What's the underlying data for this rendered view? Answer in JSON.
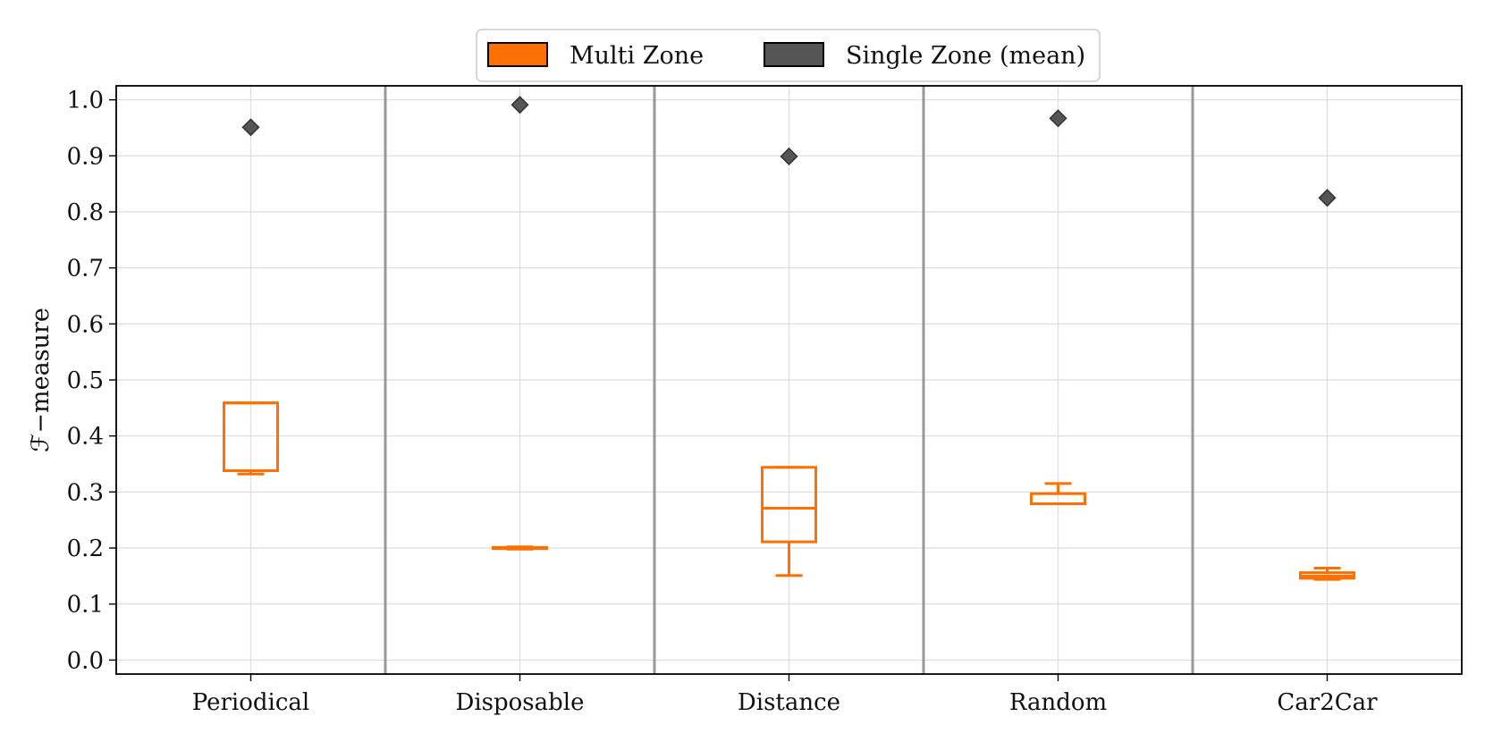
{
  "chart_data": {
    "type": "box",
    "title": "",
    "xlabel": "",
    "ylabel": "ℱ−measure",
    "ylim": [
      -0.025,
      1.025
    ],
    "yticks": [
      "0.0",
      "0.1",
      "0.2",
      "0.3",
      "0.4",
      "0.5",
      "0.6",
      "0.7",
      "0.8",
      "0.9",
      "1.0"
    ],
    "grid": true,
    "legend_position": "top-center",
    "categories": [
      "Periodical",
      "Disposable",
      "Distance",
      "Random",
      "Car2Car"
    ],
    "series": [
      {
        "name": "Multi Zone",
        "color": "#ff7000",
        "kind": "box",
        "boxes": [
          {
            "whislo": 0.332,
            "q1": 0.338,
            "med": 0.459,
            "q3": 0.459,
            "whishi": 0.459
          },
          {
            "whislo": 0.198,
            "q1": 0.199,
            "med": 0.2,
            "q3": 0.201,
            "whishi": 0.202
          },
          {
            "whislo": 0.151,
            "q1": 0.211,
            "med": 0.271,
            "q3": 0.344,
            "whishi": 0.344
          },
          {
            "whislo": 0.279,
            "q1": 0.279,
            "med": 0.279,
            "q3": 0.297,
            "whishi": 0.315
          },
          {
            "whislo": 0.144,
            "q1": 0.146,
            "med": 0.15,
            "q3": 0.156,
            "whishi": 0.164
          }
        ]
      },
      {
        "name": "Single Zone (mean)",
        "color": "#555555",
        "kind": "marker",
        "values": [
          0.951,
          0.991,
          0.899,
          0.967,
          0.825
        ]
      }
    ]
  }
}
